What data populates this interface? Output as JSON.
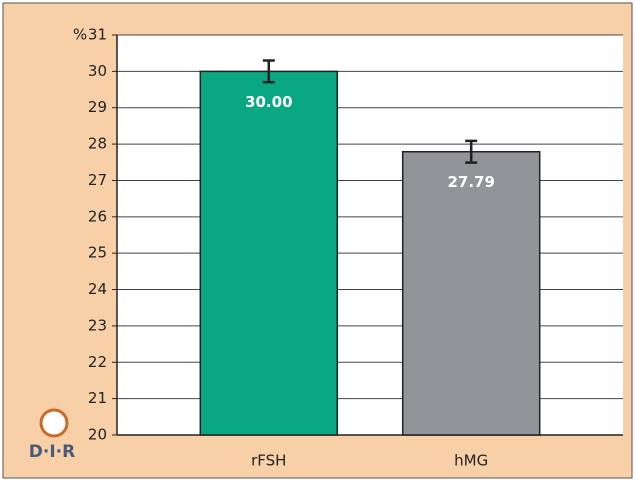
{
  "chart_data": {
    "type": "bar",
    "ylabel": "%",
    "categories": [
      "rFSH",
      "hMG"
    ],
    "series": [
      {
        "colors": [
          "#0aa783",
          "#929497"
        ],
        "values": [
          30.0,
          27.79
        ],
        "value_labels": [
          "30.00",
          "27.79"
        ],
        "errors": [
          0.3,
          0.3
        ]
      }
    ],
    "ylim": [
      20,
      31
    ],
    "yticks": [
      20,
      21,
      22,
      23,
      24,
      25,
      26,
      27,
      28,
      29,
      30,
      31
    ],
    "grid": true,
    "logo_text": "D·I·R"
  }
}
